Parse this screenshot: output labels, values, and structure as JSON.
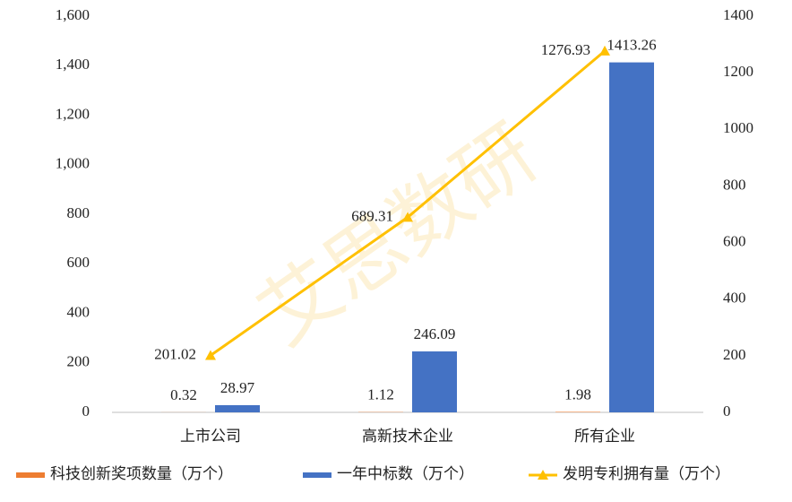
{
  "watermark": "艾思数研",
  "chart_data": {
    "type": "bar",
    "categories": [
      "上市公司",
      "高新技术企业",
      "所有企业"
    ],
    "series": [
      {
        "name": "科技创新奖项数量（万个）",
        "color": "#ed7d31",
        "values": [
          0.32,
          1.12,
          1.98
        ]
      },
      {
        "name": "一年中标数（万个）",
        "color": "#4472c4",
        "values": [
          28.97,
          246.09,
          1413.26
        ]
      },
      {
        "name": "发明专利拥有量（万个）",
        "color": "#ffc000",
        "type": "line",
        "axis": "y2",
        "values": [
          201.02,
          689.31,
          1276.93
        ]
      }
    ],
    "ylim": [
      0,
      1600
    ],
    "yticks": [
      0,
      200,
      400,
      600,
      800,
      {
        "value": 1000,
        "label": "1,000"
      },
      {
        "value": 1200,
        "label": "1,200"
      },
      {
        "value": 1400,
        "label": "1,400"
      },
      {
        "value": 1600,
        "label": "1,600"
      }
    ],
    "y2lim": [
      0,
      1400
    ],
    "y2ticks": [
      0,
      200,
      400,
      600,
      800,
      1000,
      1200,
      1400
    ],
    "legend": "bottom",
    "grid": false
  }
}
